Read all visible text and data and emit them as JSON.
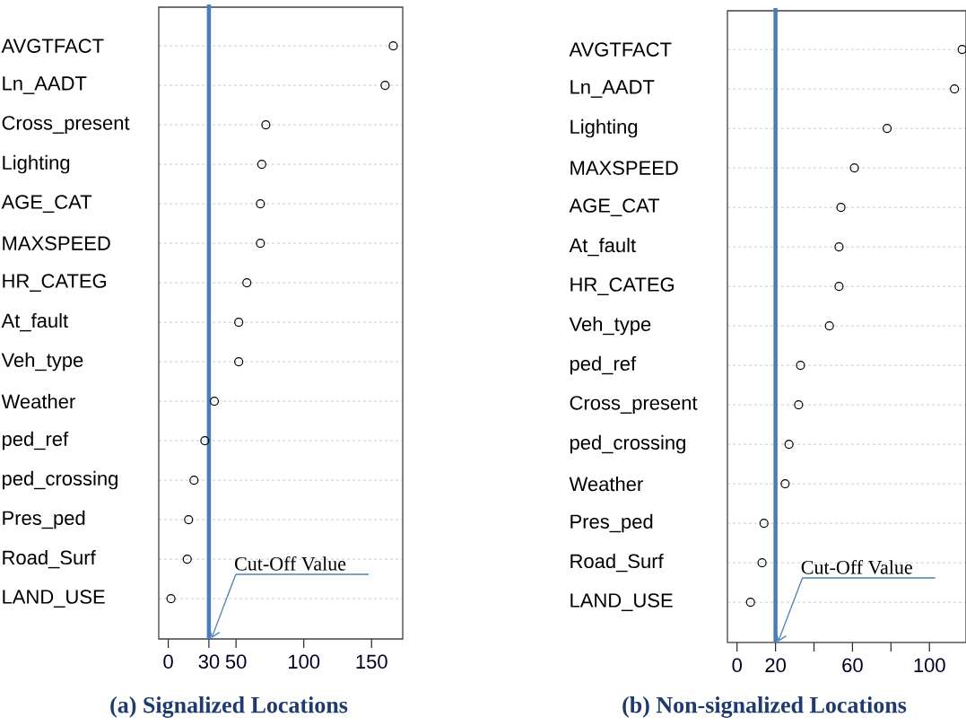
{
  "chart_data": [
    {
      "type": "scatter",
      "orientation": "horizontal",
      "title": "(a) Signalized Locations",
      "marker": "circle",
      "grid": "y",
      "color": "#000000",
      "categories": [
        "AVGTFACT",
        "Ln_AADT",
        "Cross_present",
        "Lighting",
        "AGE_CAT",
        "MAXSPEED",
        "HR_CATEG",
        "At_fault",
        "Veh_type",
        "Weather",
        "ped_ref",
        "ped_crossing",
        "Pres_ped",
        "Road_Surf",
        "LAND_USE"
      ],
      "values": [
        166,
        160,
        72,
        69,
        68,
        68,
        58,
        52,
        52,
        34,
        27,
        19,
        15,
        14,
        2
      ],
      "xlim": [
        -7,
        173
      ],
      "xticks": [
        0,
        30,
        50,
        100,
        150
      ],
      "ref_lines": [
        {
          "axis": "x",
          "value": 30,
          "label": "Cut-Off Value",
          "color": "#4a7ebb"
        }
      ]
    },
    {
      "type": "scatter",
      "orientation": "horizontal",
      "title": "(b) Non-signalized Locations",
      "marker": "circle",
      "grid": "y",
      "color": "#000000",
      "categories": [
        "AVGTFACT",
        "Ln_AADT",
        "Lighting",
        "MAXSPEED",
        "AGE_CAT",
        "At_fault",
        "HR_CATEG",
        "Veh_type",
        "ped_ref",
        "Cross_present",
        "ped_crossing",
        "Weather",
        "Pres_ped",
        "Road_Surf",
        "LAND_USE"
      ],
      "values": [
        117,
        113,
        78,
        61,
        54,
        53,
        53,
        48,
        33,
        32,
        27,
        25,
        14,
        13,
        7
      ],
      "xlim": [
        -5,
        119
      ],
      "xticks": [
        0,
        20,
        {
          "value": 40,
          "label": null
        },
        60,
        {
          "value": 80,
          "label": null
        },
        100
      ],
      "ref_lines": [
        {
          "axis": "x",
          "value": 20,
          "label": "Cut-Off Value",
          "color": "#4a7ebb"
        }
      ]
    }
  ]
}
